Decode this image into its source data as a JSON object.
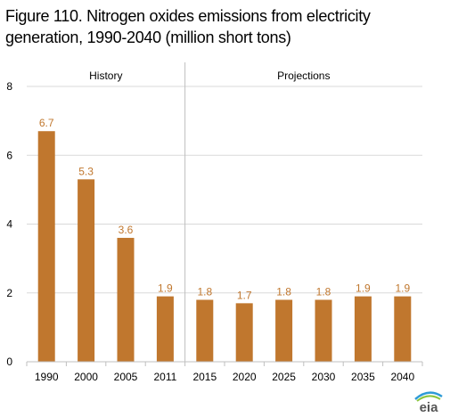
{
  "title": "Figure 110. Nitrogen oxides emissions from electricity generation, 1990-2040 (million short tons)",
  "logo_text": "eia",
  "colors": {
    "bar": "#C0772E",
    "label": "#C0772E",
    "grid": "#D9D9D9",
    "axis": "#BFBFBF"
  },
  "chart_data": {
    "type": "bar",
    "title": "Figure 110. Nitrogen oxides emissions from electricity generation, 1990-2040 (million short tons)",
    "categories": [
      "1990",
      "2000",
      "2005",
      "2011",
      "2015",
      "2020",
      "2025",
      "2030",
      "2035",
      "2040"
    ],
    "values": [
      6.7,
      5.3,
      3.6,
      1.9,
      1.8,
      1.7,
      1.8,
      1.8,
      1.9,
      1.9
    ],
    "value_labels": [
      "6.7",
      "5.3",
      "3.6",
      "1.9",
      "1.8",
      "1.7",
      "1.8",
      "1.8",
      "1.9",
      "1.9"
    ],
    "ylim": [
      0,
      8
    ],
    "yticks": [
      "0",
      "2",
      "4",
      "6",
      "8"
    ],
    "xlabel": "",
    "ylabel": "",
    "grid": true,
    "legend": "none",
    "sections": [
      {
        "label": "History",
        "categories": [
          "1990",
          "2000",
          "2005",
          "2011"
        ]
      },
      {
        "label": "Projections",
        "categories": [
          "2015",
          "2020",
          "2025",
          "2030",
          "2035",
          "2040"
        ]
      }
    ]
  }
}
